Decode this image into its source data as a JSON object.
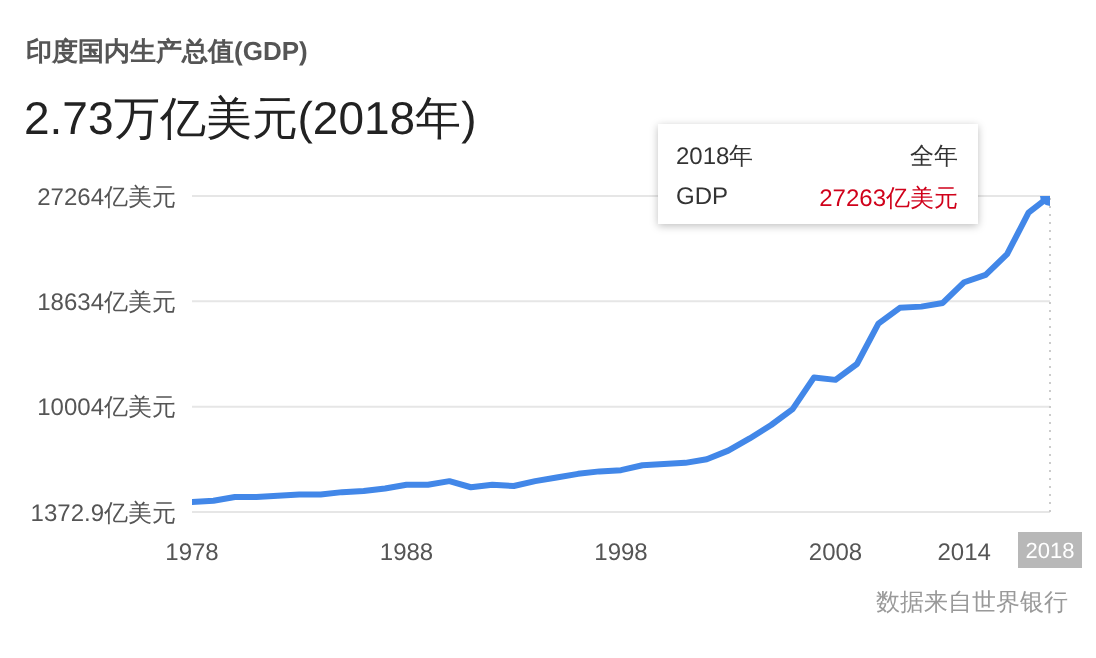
{
  "chart_data": {
    "type": "line",
    "title": "印度国内生产总值(GDP)",
    "subtitle": "2.73万亿美元(2018年)",
    "x": [
      1978,
      1979,
      1980,
      1981,
      1982,
      1983,
      1984,
      1985,
      1986,
      1987,
      1988,
      1989,
      1990,
      1991,
      1992,
      1993,
      1994,
      1995,
      1996,
      1997,
      1998,
      1999,
      2000,
      2001,
      2002,
      2003,
      2004,
      2005,
      2006,
      2007,
      2008,
      2009,
      2010,
      2011,
      2012,
      2013,
      2014,
      2015,
      2016,
      2017,
      2018
    ],
    "series": [
      {
        "name": "GDP",
        "color": "#4287e8",
        "values": [
          2200,
          2300,
          2600,
          2600,
          2700,
          2800,
          2800,
          3000,
          3100,
          3300,
          3600,
          3600,
          3900,
          3400,
          3600,
          3500,
          3900,
          4200,
          4500,
          4700,
          4800,
          5200,
          5300,
          5400,
          5700,
          6400,
          7400,
          8500,
          9800,
          12400,
          12200,
          13500,
          16800,
          18100,
          18200,
          18500,
          20200,
          20800,
          22500,
          25900,
          27263
        ]
      }
    ],
    "xlim": [
      1978,
      2018
    ],
    "xticks": [
      1978,
      1988,
      1998,
      2008,
      2014,
      2018
    ],
    "ylim": [
      1372.9,
      27264
    ],
    "yticks": [
      {
        "value": 1372.9,
        "label": "1372.9亿美元"
      },
      {
        "value": 10004,
        "label": "10004亿美元"
      },
      {
        "value": 18634,
        "label": "18634亿美元"
      },
      {
        "value": 27264,
        "label": "27264亿美元"
      }
    ],
    "grid": "y",
    "marker": "none",
    "line_style": "solid",
    "ref_lines": [
      {
        "axis": "x",
        "value": 2018,
        "color": "#cccccc",
        "line_style": "dotted"
      }
    ],
    "annotations": [
      "2018年",
      "全年",
      "27263亿美元",
      "数据来自世界银行"
    ]
  }
}
